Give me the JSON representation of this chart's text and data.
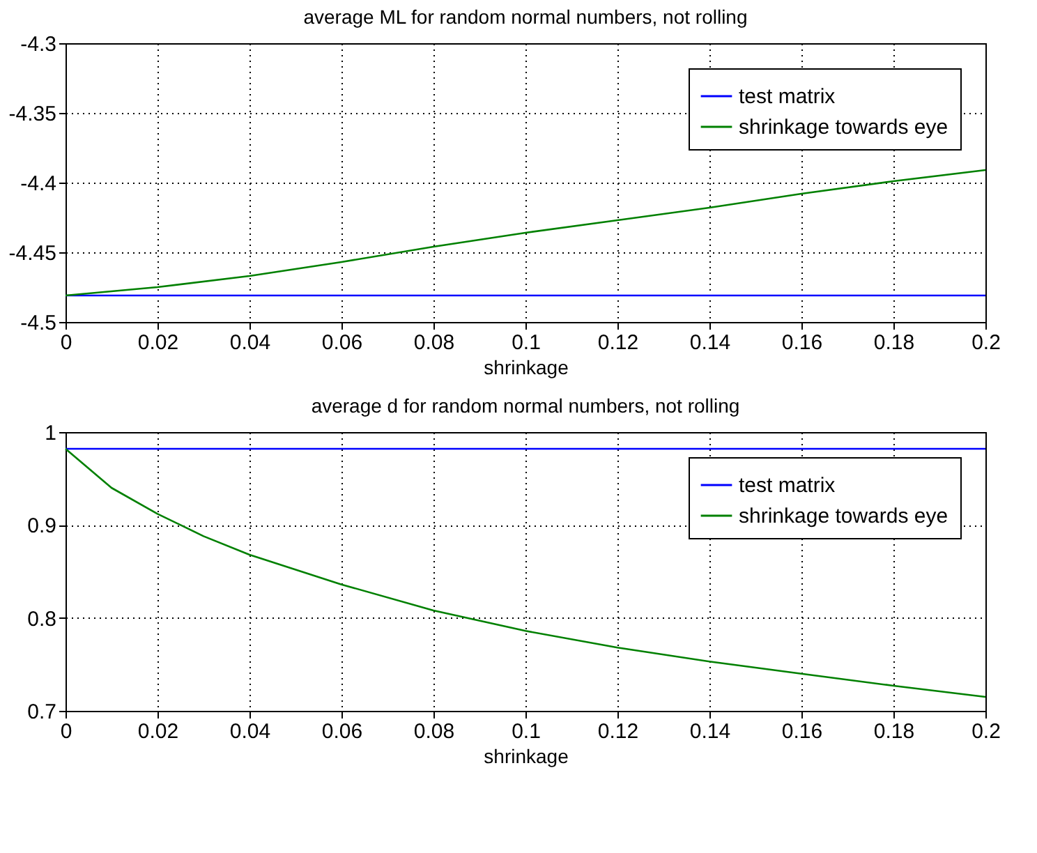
{
  "chart_data": [
    {
      "type": "line",
      "title": "average ML for random normal numbers, not rolling",
      "xlabel": "shrinkage",
      "xlim": [
        0,
        0.2
      ],
      "xticks": [
        0,
        0.02,
        0.04,
        0.06,
        0.08,
        0.1,
        0.12,
        0.14,
        0.16,
        0.18,
        0.2
      ],
      "ylim": [
        -4.5,
        -4.3
      ],
      "yticks": [
        -4.5,
        -4.45,
        -4.4,
        -4.35,
        -4.3
      ],
      "grid": true,
      "legend": "top right",
      "line_style": "solid",
      "x": [
        0,
        0.02,
        0.04,
        0.06,
        0.08,
        0.1,
        0.12,
        0.14,
        0.16,
        0.18,
        0.2
      ],
      "series": [
        {
          "name": "test matrix",
          "color": "#0000ff",
          "values": [
            -4.481,
            -4.481,
            -4.481,
            -4.481,
            -4.481,
            -4.481,
            -4.481,
            -4.481,
            -4.481,
            -4.481,
            -4.481
          ]
        },
        {
          "name": "shrinkage towards eye",
          "color": "#008000",
          "values": [
            -4.481,
            -4.475,
            -4.467,
            -4.457,
            -4.446,
            -4.436,
            -4.427,
            -4.418,
            -4.408,
            -4.399,
            -4.391
          ]
        }
      ]
    },
    {
      "type": "line",
      "title": "average d for random normal numbers, not rolling",
      "xlabel": "shrinkage",
      "xlim": [
        0,
        0.2
      ],
      "xticks": [
        0,
        0.02,
        0.04,
        0.06,
        0.08,
        0.1,
        0.12,
        0.14,
        0.16,
        0.18,
        0.2
      ],
      "ylim": [
        0.7,
        1
      ],
      "yticks": [
        0.7,
        0.8,
        0.9,
        1
      ],
      "grid": true,
      "legend": "top right",
      "line_style": "solid",
      "x": [
        0,
        0.01,
        0.02,
        0.03,
        0.04,
        0.06,
        0.08,
        0.1,
        0.12,
        0.14,
        0.16,
        0.18,
        0.2
      ],
      "series": [
        {
          "name": "test matrix",
          "color": "#0000ff",
          "values": [
            0.982,
            0.982,
            0.982,
            0.982,
            0.982,
            0.982,
            0.982,
            0.982,
            0.982,
            0.982,
            0.982,
            0.982,
            0.982
          ]
        },
        {
          "name": "shrinkage towards eye",
          "color": "#008000",
          "values": [
            0.982,
            0.94,
            0.912,
            0.888,
            0.868,
            0.836,
            0.808,
            0.786,
            0.768,
            0.753,
            0.74,
            0.727,
            0.715
          ]
        }
      ]
    }
  ]
}
